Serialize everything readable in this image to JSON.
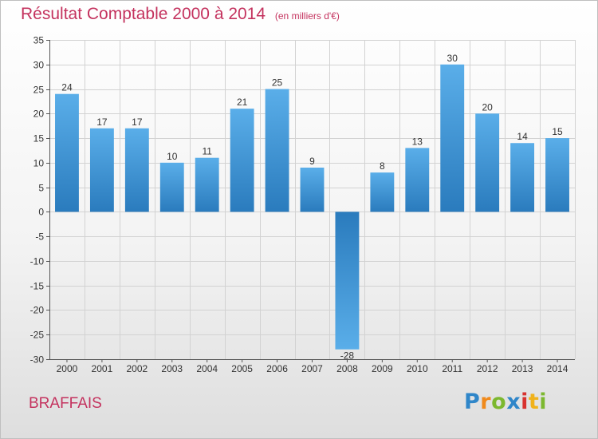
{
  "title": "Résultat Comptable 2000 à 2014",
  "subtitle": "(en milliers d'€)",
  "place_name": "BRAFFAIS",
  "logo_text": "Proxiti",
  "colors": {
    "title": "#c4325e",
    "bar_light": "#5aaee9",
    "bar_dark": "#2a7bbd",
    "grid": "#d2d2d2"
  },
  "chart_data": {
    "type": "bar",
    "title": "Résultat Comptable 2000 à 2014",
    "subtitle": "(en milliers d'€)",
    "categories": [
      "2000",
      "2001",
      "2002",
      "2003",
      "2004",
      "2005",
      "2006",
      "2007",
      "2008",
      "2009",
      "2010",
      "2011",
      "2012",
      "2013",
      "2014"
    ],
    "values": [
      24,
      17,
      17,
      10,
      11,
      21,
      25,
      9,
      -28,
      8,
      13,
      30,
      20,
      14,
      15
    ],
    "data_labels": [
      "24",
      "17",
      "17",
      "10",
      "11",
      "21",
      "25",
      "9",
      "-28",
      "8",
      "13",
      "30",
      "20",
      "14",
      "15"
    ],
    "ylim": [
      -30,
      35
    ],
    "yticks": [
      35,
      30,
      25,
      20,
      15,
      10,
      5,
      0,
      -5,
      -10,
      -15,
      -20,
      -25,
      -30
    ],
    "ytick_labels": [
      "35",
      "30",
      "25",
      "20",
      "15",
      "10",
      "5",
      "0",
      "-5",
      "-10",
      "-15",
      "-20",
      "-25",
      "-30"
    ],
    "grid": true,
    "legend": "none"
  }
}
